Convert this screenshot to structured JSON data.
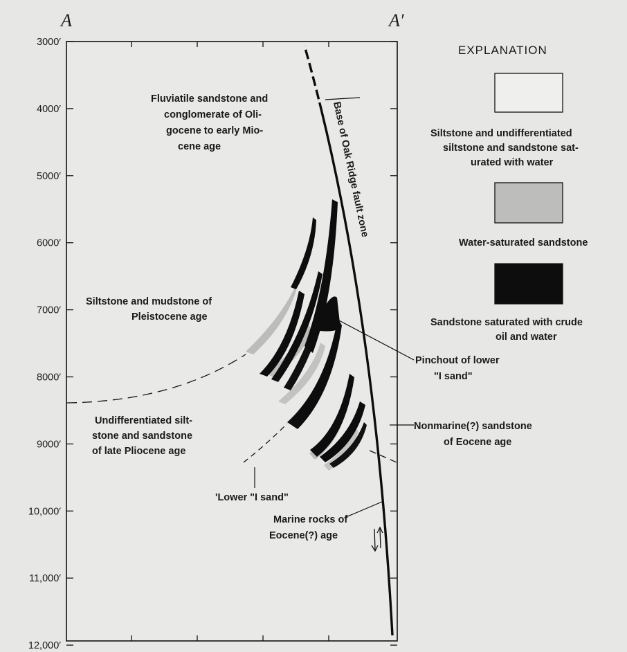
{
  "section_labels": {
    "left": "A",
    "right": "A′"
  },
  "depth_ticks": [
    "3000′",
    "4000′",
    "5000′",
    "6000′",
    "7000′",
    "8000′",
    "9000′",
    "10,000′",
    "11,000′",
    "12,000′"
  ],
  "fault_label": "Base of Oak Ridge fault zone",
  "units": {
    "fluviatile": [
      "Fluviatile sandstone and",
      "conglomerate of Oli-",
      "gocene to early Mio-",
      "cene age"
    ],
    "siltstone_mudstone": [
      "Siltstone and mudstone of",
      "Pleistocene age"
    ],
    "undifferentiated": [
      "Undifferentiated  silt-",
      "stone and sandstone",
      "of late Pliocene age"
    ],
    "lower_i_sand": "'Lower \"I sand\"",
    "marine": [
      "Marine rocks of",
      "Eocene(?) age"
    ],
    "pinchout": [
      "Pinchout of lower",
      "\"I sand\""
    ],
    "nonmarine": [
      "Nonmarine(?) sandstone",
      "of Eocene age"
    ]
  },
  "explanation": {
    "title": "EXPLANATION",
    "items": [
      {
        "fill": "#efefed",
        "lines": [
          "Siltstone and undifferentiated",
          "siltstone and sandstone sat-",
          "urated with water"
        ]
      },
      {
        "fill": "#bdbdbb",
        "lines": [
          "Water-saturated sandstone"
        ]
      },
      {
        "fill": "#0d0d0d",
        "lines": [
          "Sandstone saturated with crude",
          "oil and water"
        ]
      }
    ]
  }
}
